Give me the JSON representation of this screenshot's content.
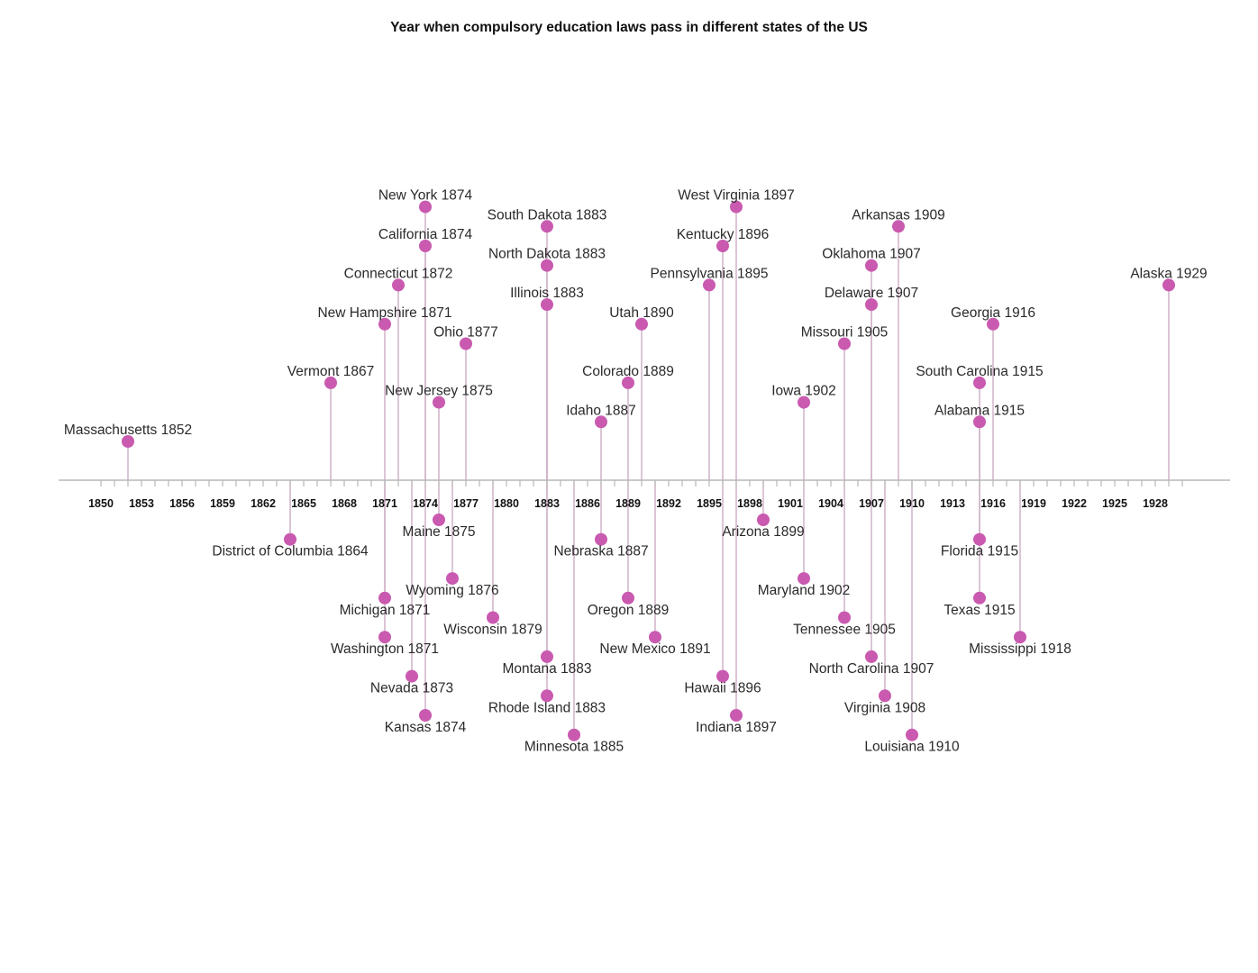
{
  "chart_data": {
    "type": "timeline",
    "title": "Year when compulsory education laws pass in different states of the US",
    "xlabel": "",
    "ylabel": "",
    "xlim": [
      1849,
      1931
    ],
    "tick_labels": [
      "1850",
      "1853",
      "1856",
      "1859",
      "1862",
      "1865",
      "1868",
      "1871",
      "1874",
      "1877",
      "1880",
      "1883",
      "1886",
      "1889",
      "1892",
      "1895",
      "1898",
      "1901",
      "1904",
      "1907",
      "1910",
      "1913",
      "1916",
      "1919",
      "1922",
      "1925",
      "1928"
    ],
    "grid": false,
    "marker_color": "#c95ab0",
    "stem_color": "#c9a6bf",
    "axis_color": "#b8b8b8",
    "events": [
      {
        "state": "Massachusetts",
        "year": 1852,
        "label": "Massachusetts 1852"
      },
      {
        "state": "District of Columbia",
        "year": 1864,
        "label": "District of Columbia 1864"
      },
      {
        "state": "Vermont",
        "year": 1867,
        "label": "Vermont 1867"
      },
      {
        "state": "New Hampshire",
        "year": 1871,
        "label": "New Hampshire 1871"
      },
      {
        "state": "Michigan",
        "year": 1871,
        "label": "Michigan 1871"
      },
      {
        "state": "Washington",
        "year": 1871,
        "label": "Washington 1871"
      },
      {
        "state": "Connecticut",
        "year": 1872,
        "label": "Connecticut 1872"
      },
      {
        "state": "Nevada",
        "year": 1873,
        "label": "Nevada 1873"
      },
      {
        "state": "New York",
        "year": 1874,
        "label": "New York 1874"
      },
      {
        "state": "California",
        "year": 1874,
        "label": "California 1874"
      },
      {
        "state": "Kansas",
        "year": 1874,
        "label": "Kansas 1874"
      },
      {
        "state": "New Jersey",
        "year": 1875,
        "label": "New Jersey 1875"
      },
      {
        "state": "Maine",
        "year": 1875,
        "label": "Maine 1875"
      },
      {
        "state": "Wyoming",
        "year": 1876,
        "label": "Wyoming 1876"
      },
      {
        "state": "Ohio",
        "year": 1877,
        "label": "Ohio 1877"
      },
      {
        "state": "Wisconsin",
        "year": 1879,
        "label": "Wisconsin 1879"
      },
      {
        "state": "South Dakota",
        "year": 1883,
        "label": "South Dakota 1883"
      },
      {
        "state": "North Dakota",
        "year": 1883,
        "label": "North Dakota 1883"
      },
      {
        "state": "Illinois",
        "year": 1883,
        "label": "Illinois 1883"
      },
      {
        "state": "Montana",
        "year": 1883,
        "label": "Montana 1883"
      },
      {
        "state": "Rhode Island",
        "year": 1883,
        "label": "Rhode Island 1883"
      },
      {
        "state": "Minnesota",
        "year": 1885,
        "label": "Minnesota 1885"
      },
      {
        "state": "Idaho",
        "year": 1887,
        "label": "Idaho 1887"
      },
      {
        "state": "Nebraska",
        "year": 1887,
        "label": "Nebraska 1887"
      },
      {
        "state": "Colorado",
        "year": 1889,
        "label": "Colorado 1889"
      },
      {
        "state": "Oregon",
        "year": 1889,
        "label": "Oregon 1889"
      },
      {
        "state": "Utah",
        "year": 1890,
        "label": "Utah 1890"
      },
      {
        "state": "New Mexico",
        "year": 1891,
        "label": "New Mexico 1891"
      },
      {
        "state": "Pennsylvania",
        "year": 1895,
        "label": "Pennsylvania 1895"
      },
      {
        "state": "Kentucky",
        "year": 1896,
        "label": "Kentucky 1896"
      },
      {
        "state": "Hawaii",
        "year": 1896,
        "label": "Hawaii 1896"
      },
      {
        "state": "West Virginia",
        "year": 1897,
        "label": "West Virginia 1897"
      },
      {
        "state": "Indiana",
        "year": 1897,
        "label": "Indiana 1897"
      },
      {
        "state": "Arizona",
        "year": 1899,
        "label": "Arizona 1899"
      },
      {
        "state": "Iowa",
        "year": 1902,
        "label": "Iowa 1902"
      },
      {
        "state": "Maryland",
        "year": 1902,
        "label": "Maryland 1902"
      },
      {
        "state": "Missouri",
        "year": 1905,
        "label": "Missouri 1905"
      },
      {
        "state": "Tennessee",
        "year": 1905,
        "label": "Tennessee 1905"
      },
      {
        "state": "Oklahoma",
        "year": 1907,
        "label": "Oklahoma 1907"
      },
      {
        "state": "Delaware",
        "year": 1907,
        "label": "Delaware 1907"
      },
      {
        "state": "North Carolina",
        "year": 1907,
        "label": "North Carolina 1907"
      },
      {
        "state": "Virginia",
        "year": 1908,
        "label": "Virginia 1908"
      },
      {
        "state": "Arkansas",
        "year": 1909,
        "label": "Arkansas 1909"
      },
      {
        "state": "Louisiana",
        "year": 1910,
        "label": "Louisiana 1910"
      },
      {
        "state": "South Carolina",
        "year": 1915,
        "label": "South Carolina 1915"
      },
      {
        "state": "Alabama",
        "year": 1915,
        "label": "Alabama 1915"
      },
      {
        "state": "Florida",
        "year": 1915,
        "label": "Florida 1915"
      },
      {
        "state": "Texas",
        "year": 1915,
        "label": "Texas 1915"
      },
      {
        "state": "Georgia",
        "year": 1916,
        "label": "Georgia 1916"
      },
      {
        "state": "Mississippi",
        "year": 1918,
        "label": "Mississippi 1918"
      },
      {
        "state": "Alaska",
        "year": 1929,
        "label": "Alaska 1929"
      }
    ]
  }
}
